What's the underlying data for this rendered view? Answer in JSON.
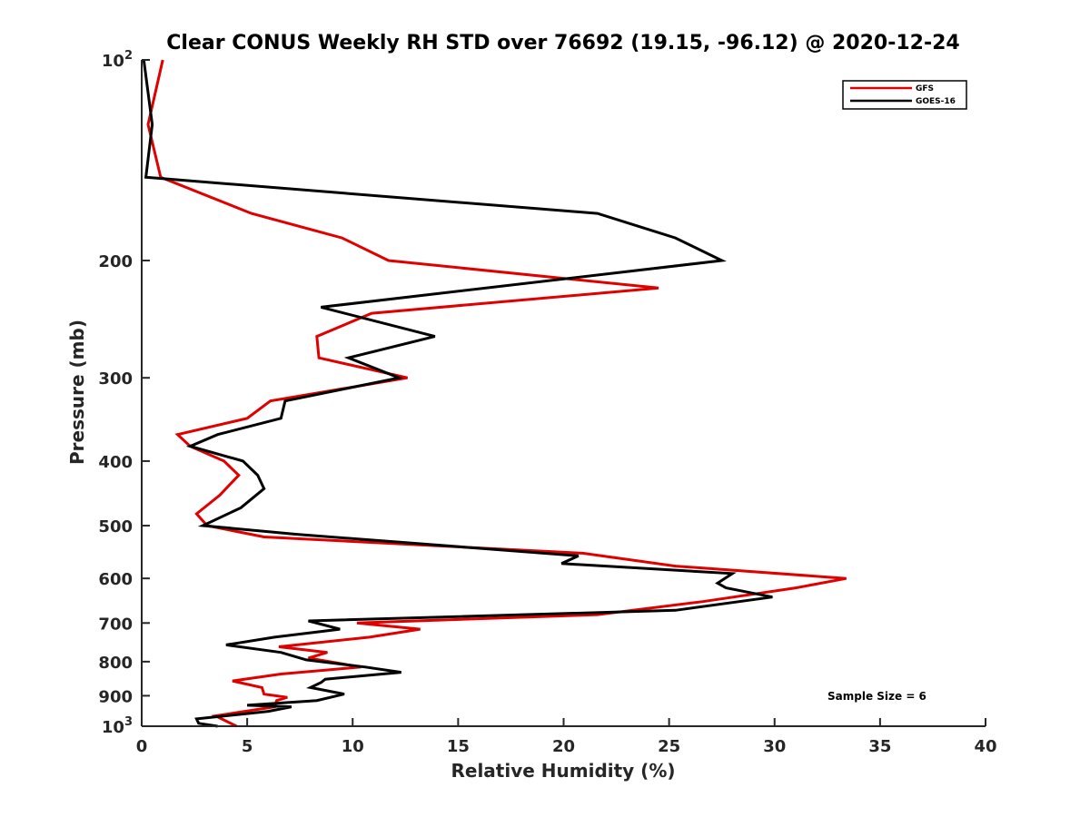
{
  "chart_data": {
    "type": "line",
    "title": "Clear CONUS Weekly RH STD over 76692 (19.15, -96.12) @ 2020-12-24",
    "xlabel": "Relative Humidity (%)",
    "ylabel": "Pressure (mb)",
    "xlim": [
      0,
      40
    ],
    "ylim": [
      100,
      1000
    ],
    "yscale": "log",
    "yreversed": false,
    "xticks": [
      0,
      5,
      10,
      15,
      20,
      25,
      30,
      35,
      40
    ],
    "yticks": [
      {
        "value": 100,
        "label": "10",
        "sup": "2"
      },
      {
        "value": 200,
        "label": "200",
        "sup": ""
      },
      {
        "value": 300,
        "label": "300",
        "sup": ""
      },
      {
        "value": 400,
        "label": "400",
        "sup": ""
      },
      {
        "value": 500,
        "label": "500",
        "sup": ""
      },
      {
        "value": 600,
        "label": "600",
        "sup": ""
      },
      {
        "value": 700,
        "label": "700",
        "sup": ""
      },
      {
        "value": 800,
        "label": "800",
        "sup": ""
      },
      {
        "value": 900,
        "label": "900",
        "sup": ""
      },
      {
        "value": 1000,
        "label": "10",
        "sup": "3"
      }
    ],
    "legend_position": "top-right",
    "annotation": "Sample Size = 6",
    "series": [
      {
        "name": "GFS",
        "color": "#e00000",
        "points": [
          [
            1.0,
            100
          ],
          [
            0.3,
            125
          ],
          [
            0.9,
            150
          ],
          [
            5.2,
            170
          ],
          [
            9.5,
            185
          ],
          [
            11.7,
            200
          ],
          [
            24.5,
            220
          ],
          [
            10.9,
            240
          ],
          [
            8.3,
            260
          ],
          [
            8.4,
            280
          ],
          [
            12.6,
            300
          ],
          [
            6.1,
            325
          ],
          [
            5.0,
            345
          ],
          [
            1.7,
            365
          ],
          [
            2.3,
            380
          ],
          [
            3.9,
            400
          ],
          [
            4.6,
            420
          ],
          [
            3.7,
            450
          ],
          [
            2.6,
            480
          ],
          [
            3.1,
            500
          ],
          [
            5.8,
            520
          ],
          [
            20.9,
            550
          ],
          [
            25.3,
            575
          ],
          [
            33.4,
            600
          ],
          [
            31.0,
            620
          ],
          [
            26.6,
            650
          ],
          [
            21.6,
            680
          ],
          [
            10.2,
            700
          ],
          [
            13.2,
            715
          ],
          [
            10.8,
            735
          ],
          [
            6.5,
            760
          ],
          [
            8.8,
            775
          ],
          [
            7.9,
            790
          ],
          [
            10.4,
            815
          ],
          [
            6.6,
            835
          ],
          [
            4.3,
            855
          ],
          [
            5.7,
            875
          ],
          [
            5.8,
            895
          ],
          [
            6.9,
            905
          ],
          [
            6.4,
            915
          ],
          [
            6.3,
            935
          ],
          [
            3.5,
            965
          ],
          [
            4.5,
            1000
          ]
        ]
      },
      {
        "name": "GOES-16",
        "color": "#000000",
        "points": [
          [
            0.1,
            100
          ],
          [
            0.5,
            125
          ],
          [
            0.2,
            150
          ],
          [
            21.6,
            170
          ],
          [
            25.3,
            185
          ],
          [
            27.5,
            200
          ],
          [
            8.5,
            235
          ],
          [
            13.9,
            260
          ],
          [
            9.8,
            280
          ],
          [
            12.2,
            300
          ],
          [
            6.8,
            325
          ],
          [
            6.6,
            345
          ],
          [
            3.6,
            365
          ],
          [
            2.3,
            380
          ],
          [
            4.8,
            400
          ],
          [
            5.5,
            420
          ],
          [
            5.8,
            440
          ],
          [
            4.7,
            470
          ],
          [
            2.9,
            500
          ],
          [
            7.3,
            515
          ],
          [
            20.7,
            555
          ],
          [
            19.9,
            570
          ],
          [
            28.0,
            590
          ],
          [
            27.3,
            610
          ],
          [
            27.7,
            620
          ],
          [
            29.9,
            640
          ],
          [
            25.3,
            670
          ],
          [
            7.9,
            695
          ],
          [
            9.4,
            715
          ],
          [
            6.3,
            735
          ],
          [
            4.0,
            755
          ],
          [
            6.6,
            775
          ],
          [
            7.8,
            795
          ],
          [
            10.6,
            815
          ],
          [
            12.3,
            830
          ],
          [
            8.7,
            850
          ],
          [
            8.5,
            860
          ],
          [
            8.0,
            875
          ],
          [
            9.6,
            895
          ],
          [
            8.3,
            915
          ],
          [
            5.0,
            930
          ],
          [
            7.1,
            935
          ],
          [
            6.0,
            950
          ],
          [
            2.6,
            975
          ],
          [
            2.7,
            990
          ],
          [
            3.6,
            1000
          ]
        ]
      }
    ]
  }
}
